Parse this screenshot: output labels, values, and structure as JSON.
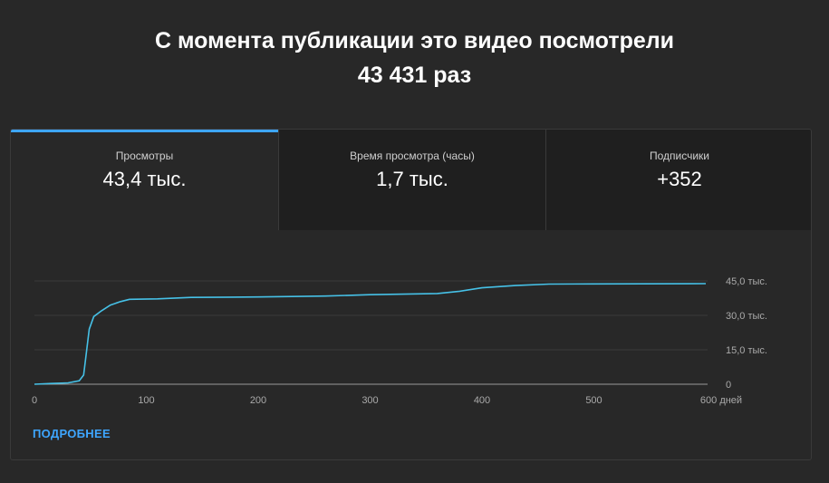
{
  "header": {
    "line1": "С момента публикации это видео посмотрели",
    "line2": "43 431 раз"
  },
  "tabs": [
    {
      "label": "Просмотры",
      "value": "43,4 тыс."
    },
    {
      "label": "Время просмотра (часы)",
      "value": "1,7 тыс."
    },
    {
      "label": "Подписчики",
      "value": "+352"
    }
  ],
  "more_link": "ПОДРОБНЕЕ",
  "colors": {
    "accent": "#3ea6ff",
    "line": "#46c1e7"
  },
  "chart_data": {
    "type": "line",
    "title": "",
    "xlabel": "",
    "ylabel": "",
    "x_ticks": [
      {
        "value": 0,
        "label": "0"
      },
      {
        "value": 100,
        "label": "100"
      },
      {
        "value": 200,
        "label": "200"
      },
      {
        "value": 300,
        "label": "300"
      },
      {
        "value": 400,
        "label": "400"
      },
      {
        "value": 500,
        "label": "500"
      },
      {
        "value": 600,
        "label": "600 дней"
      }
    ],
    "y_ticks": [
      {
        "value": 0,
        "label": "0"
      },
      {
        "value": 15000,
        "label": "15,0 тыс."
      },
      {
        "value": 30000,
        "label": "30,0 тыс."
      },
      {
        "value": 45000,
        "label": "45,0 тыс."
      }
    ],
    "xlim": [
      0,
      600
    ],
    "ylim": [
      0,
      45000
    ],
    "grid": true,
    "y_axis_position": "right",
    "series": [
      {
        "values": [
          [
            0,
            0
          ],
          [
            15,
            300
          ],
          [
            30,
            600
          ],
          [
            40,
            1500
          ],
          [
            44,
            4000
          ],
          [
            46,
            12000
          ],
          [
            49,
            24000
          ],
          [
            53,
            29500
          ],
          [
            60,
            32000
          ],
          [
            68,
            34500
          ],
          [
            77,
            36000
          ],
          [
            85,
            37000
          ],
          [
            110,
            37200
          ],
          [
            140,
            37800
          ],
          [
            200,
            38000
          ],
          [
            260,
            38400
          ],
          [
            300,
            39000
          ],
          [
            360,
            39500
          ],
          [
            380,
            40500
          ],
          [
            400,
            42000
          ],
          [
            430,
            43000
          ],
          [
            460,
            43600
          ],
          [
            500,
            43700
          ],
          [
            600,
            43800
          ]
        ]
      }
    ]
  }
}
